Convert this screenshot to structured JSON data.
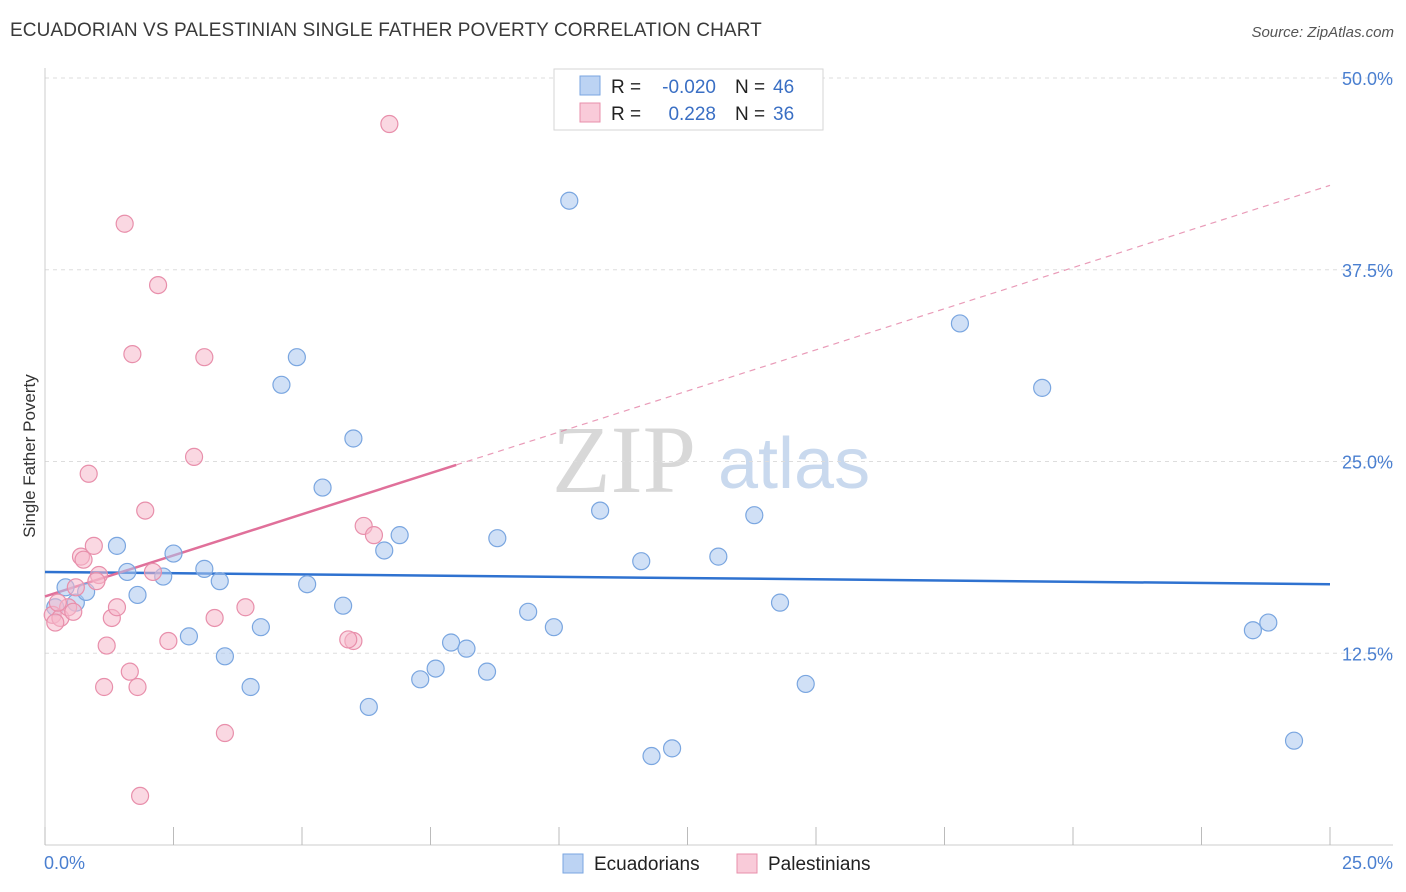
{
  "title": "ECUADORIAN VS PALESTINIAN SINGLE FATHER POVERTY CORRELATION CHART",
  "source": "Source: ZipAtlas.com",
  "watermark": {
    "zip": "ZIP",
    "atlas": "atlas"
  },
  "chart_data": {
    "type": "scatter",
    "title": "ECUADORIAN VS PALESTINIAN SINGLE FATHER POVERTY CORRELATION CHART",
    "xlabel": "",
    "ylabel": "Single Father Poverty",
    "xlim": [
      0,
      25
    ],
    "ylim": [
      0,
      50
    ],
    "x_tick_labels": [
      "0.0%",
      "25.0%"
    ],
    "y_ticks": [
      12.5,
      25.0,
      37.5,
      50.0
    ],
    "y_tick_labels": [
      "12.5%",
      "25.0%",
      "37.5%",
      "50.0%"
    ],
    "grid": true,
    "legend_top": [
      {
        "r_label": "R =",
        "r_value": "-0.020",
        "n_label": "N =",
        "n_value": "46",
        "color": "#a9c6ef"
      },
      {
        "r_label": "R =",
        "r_value": "0.228",
        "n_label": "N =",
        "n_value": "36",
        "color": "#f5b8cb"
      }
    ],
    "series": [
      {
        "name": "Ecuadorians",
        "color": "#a9c6ef",
        "stroke": "#7aa6e0",
        "trend": {
          "x0": 0,
          "y0": 17.8,
          "x1": 25,
          "y1": 17.0,
          "color": "#2f72d0",
          "dashed_from": null
        },
        "points": [
          [
            0.2,
            15.5
          ],
          [
            0.4,
            16.8
          ],
          [
            0.6,
            15.8
          ],
          [
            0.8,
            16.5
          ],
          [
            1.4,
            19.5
          ],
          [
            1.6,
            17.8
          ],
          [
            1.8,
            16.3
          ],
          [
            2.3,
            17.5
          ],
          [
            2.5,
            19.0
          ],
          [
            2.8,
            13.6
          ],
          [
            3.1,
            18.0
          ],
          [
            3.4,
            17.2
          ],
          [
            3.5,
            12.3
          ],
          [
            4.0,
            10.3
          ],
          [
            4.2,
            14.2
          ],
          [
            4.6,
            30.0
          ],
          [
            4.9,
            31.8
          ],
          [
            5.1,
            17.0
          ],
          [
            5.4,
            23.3
          ],
          [
            5.8,
            15.6
          ],
          [
            6.0,
            26.5
          ],
          [
            6.3,
            9.0
          ],
          [
            6.6,
            19.2
          ],
          [
            6.9,
            20.2
          ],
          [
            7.3,
            10.8
          ],
          [
            7.6,
            11.5
          ],
          [
            7.9,
            13.2
          ],
          [
            8.2,
            12.8
          ],
          [
            8.6,
            11.3
          ],
          [
            8.8,
            20.0
          ],
          [
            9.4,
            15.2
          ],
          [
            9.9,
            14.2
          ],
          [
            10.2,
            42.0
          ],
          [
            10.8,
            21.8
          ],
          [
            11.6,
            18.5
          ],
          [
            11.8,
            5.8
          ],
          [
            12.2,
            6.3
          ],
          [
            13.1,
            18.8
          ],
          [
            13.8,
            21.5
          ],
          [
            14.3,
            15.8
          ],
          [
            14.8,
            10.5
          ],
          [
            17.8,
            34.0
          ],
          [
            19.4,
            29.8
          ],
          [
            23.5,
            14.0
          ],
          [
            23.8,
            14.5
          ],
          [
            24.3,
            6.8
          ]
        ]
      },
      {
        "name": "Palestinians",
        "color": "#f5b8cb",
        "stroke": "#e88fab",
        "trend": {
          "x0": 0,
          "y0": 16.2,
          "x1": 25,
          "y1": 43.0,
          "color": "#e0709a",
          "solid_until": 8.0
        },
        "points": [
          [
            0.15,
            15.0
          ],
          [
            0.3,
            14.8
          ],
          [
            0.45,
            15.5
          ],
          [
            0.6,
            16.8
          ],
          [
            0.7,
            18.8
          ],
          [
            0.85,
            24.2
          ],
          [
            0.95,
            19.5
          ],
          [
            1.05,
            17.6
          ],
          [
            1.15,
            10.3
          ],
          [
            1.2,
            13.0
          ],
          [
            1.3,
            14.8
          ],
          [
            1.4,
            15.5
          ],
          [
            1.55,
            40.5
          ],
          [
            1.65,
            11.3
          ],
          [
            1.7,
            32.0
          ],
          [
            1.8,
            10.3
          ],
          [
            1.85,
            3.2
          ],
          [
            1.95,
            21.8
          ],
          [
            2.1,
            17.8
          ],
          [
            2.2,
            36.5
          ],
          [
            2.4,
            13.3
          ],
          [
            2.9,
            25.3
          ],
          [
            3.1,
            31.8
          ],
          [
            3.3,
            14.8
          ],
          [
            3.5,
            7.3
          ],
          [
            3.9,
            15.5
          ],
          [
            6.0,
            13.3
          ],
          [
            6.2,
            20.8
          ],
          [
            6.4,
            20.2
          ],
          [
            6.7,
            47.0
          ],
          [
            0.25,
            15.8
          ],
          [
            0.55,
            15.2
          ],
          [
            0.75,
            18.6
          ],
          [
            1.0,
            17.2
          ],
          [
            5.9,
            13.4
          ],
          [
            0.2,
            14.5
          ]
        ]
      }
    ]
  },
  "bottom_legend": [
    {
      "label": "Ecuadorians",
      "color": "#a9c6ef"
    },
    {
      "label": "Palestinians",
      "color": "#f5b8cb"
    }
  ]
}
